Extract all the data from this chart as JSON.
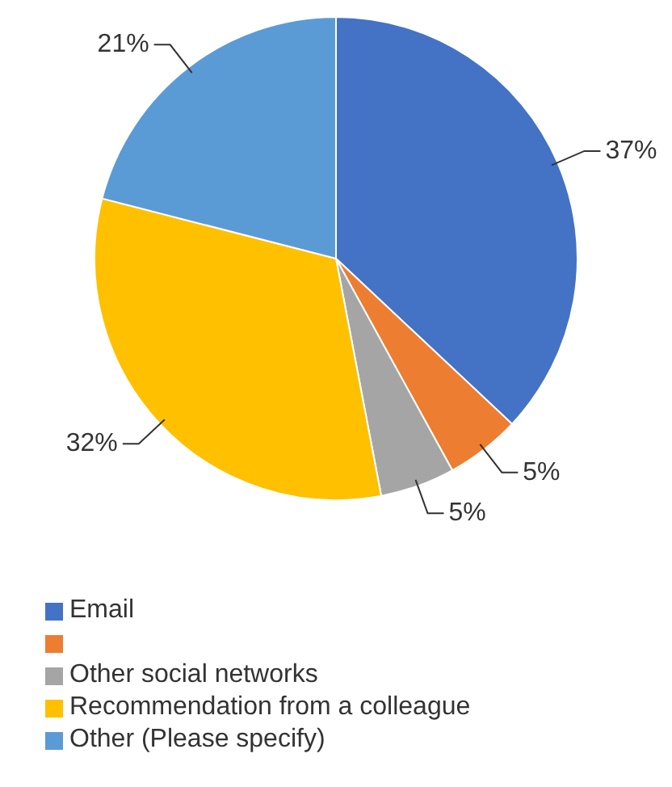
{
  "chart_data": {
    "type": "pie",
    "categories": [
      "Email",
      null,
      "Other social networks",
      "Recommendation from a colleague",
      "Other (Please specify)"
    ],
    "values": [
      37,
      5,
      5,
      32,
      21
    ],
    "colors": [
      "#4472c4",
      "#ed7d31",
      "#a5a5a5",
      "#ffc000",
      "#5b9bd5"
    ],
    "value_labels": [
      "37%",
      "5%",
      "5%",
      "32%",
      "21%"
    ],
    "legend": "bottom"
  }
}
